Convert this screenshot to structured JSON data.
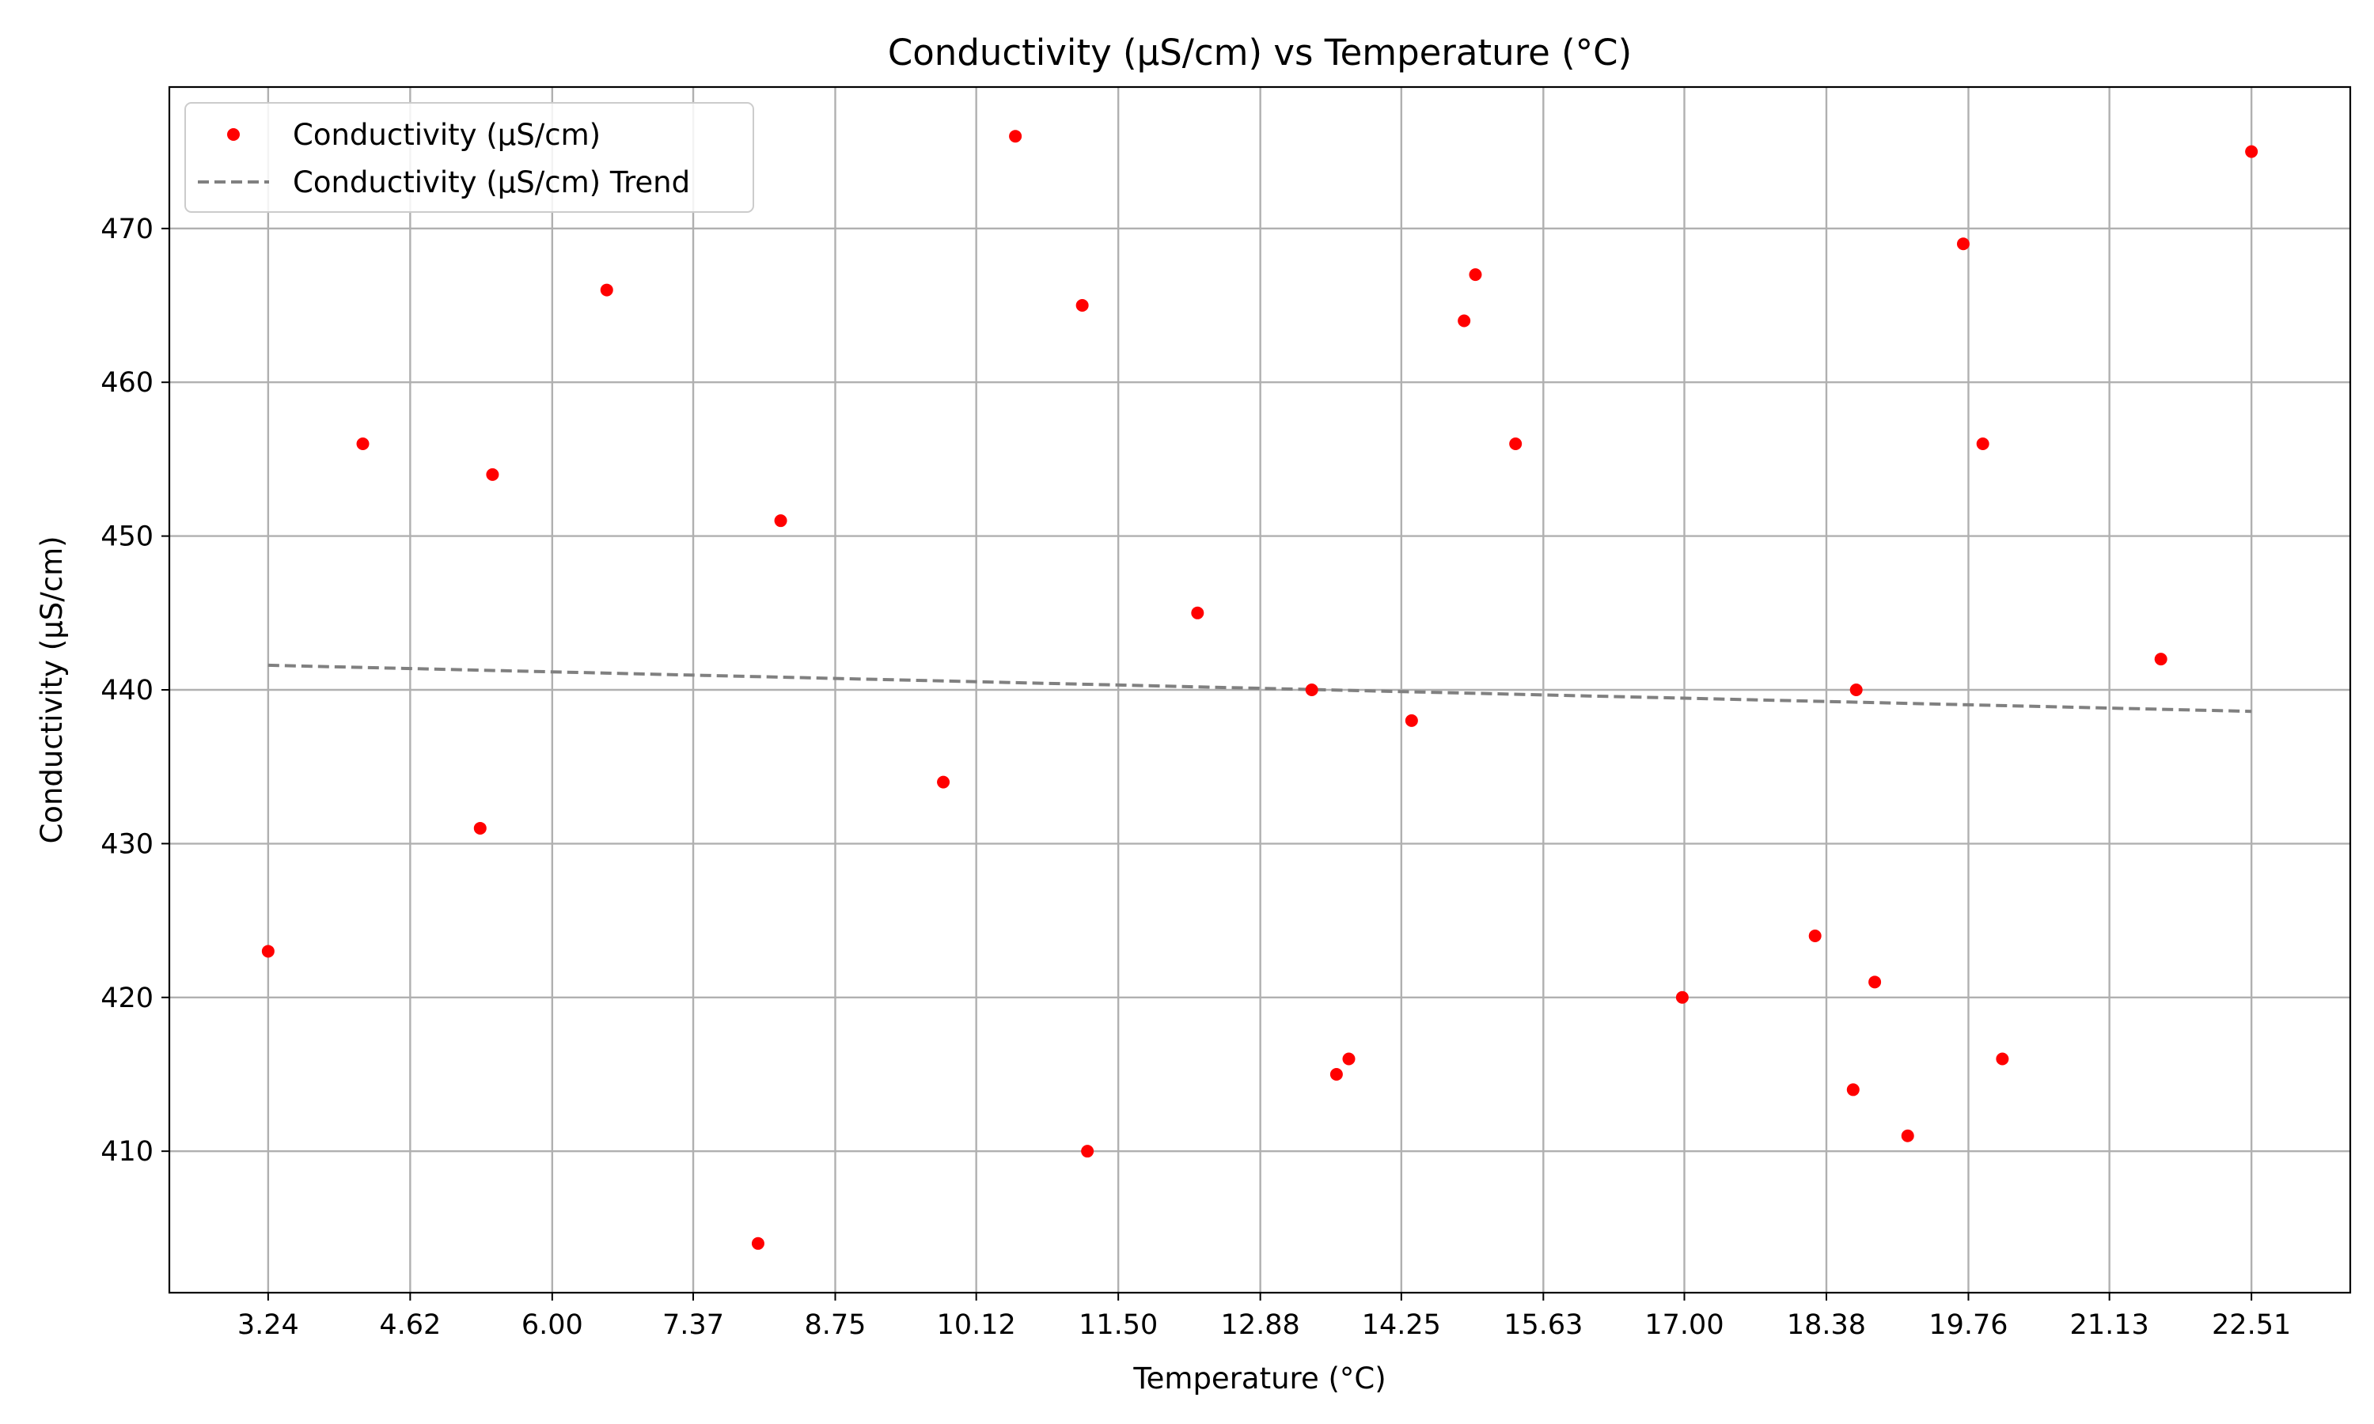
{
  "chart_data": {
    "type": "scatter",
    "title": "Conductivity (µS/cm) vs Temperature (°C)",
    "xlabel": "Temperature (°C)",
    "ylabel": "Conductivity (µS/cm)",
    "xlim": [
      2.28,
      23.47
    ],
    "ylim": [
      400.8,
      479.2
    ],
    "x_ticks": [
      "3.24",
      "4.62",
      "6.00",
      "7.37",
      "8.75",
      "10.12",
      "11.50",
      "12.88",
      "14.25",
      "15.63",
      "17.00",
      "18.38",
      "19.76",
      "21.13",
      "22.51"
    ],
    "y_ticks": [
      "410",
      "420",
      "430",
      "440",
      "450",
      "460",
      "470"
    ],
    "grid": true,
    "legend_position": "top-left",
    "series": [
      {
        "name": "Conductivity (µS/cm)",
        "kind": "scatter",
        "color": "#ff0000",
        "points": [
          {
            "x": 3.24,
            "y": 423
          },
          {
            "x": 4.16,
            "y": 456
          },
          {
            "x": 5.3,
            "y": 431
          },
          {
            "x": 5.42,
            "y": 454
          },
          {
            "x": 6.53,
            "y": 466
          },
          {
            "x": 8.0,
            "y": 404
          },
          {
            "x": 8.22,
            "y": 451
          },
          {
            "x": 9.8,
            "y": 434
          },
          {
            "x": 10.5,
            "y": 476
          },
          {
            "x": 11.15,
            "y": 465
          },
          {
            "x": 11.2,
            "y": 410
          },
          {
            "x": 12.27,
            "y": 445
          },
          {
            "x": 13.38,
            "y": 440
          },
          {
            "x": 13.62,
            "y": 415
          },
          {
            "x": 13.74,
            "y": 416
          },
          {
            "x": 14.35,
            "y": 438
          },
          {
            "x": 14.86,
            "y": 464
          },
          {
            "x": 14.97,
            "y": 467
          },
          {
            "x": 15.36,
            "y": 456
          },
          {
            "x": 16.98,
            "y": 420
          },
          {
            "x": 18.27,
            "y": 424
          },
          {
            "x": 18.64,
            "y": 414
          },
          {
            "x": 18.67,
            "y": 440
          },
          {
            "x": 18.85,
            "y": 421
          },
          {
            "x": 19.17,
            "y": 411
          },
          {
            "x": 19.71,
            "y": 469
          },
          {
            "x": 19.9,
            "y": 456
          },
          {
            "x": 20.09,
            "y": 416
          },
          {
            "x": 21.63,
            "y": 442
          },
          {
            "x": 22.51,
            "y": 475
          }
        ]
      },
      {
        "name": "Conductivity (µS/cm) Trend",
        "kind": "line",
        "color": "#808080",
        "dash": "dashed",
        "points": [
          {
            "x": 3.24,
            "y": 441.6
          },
          {
            "x": 22.51,
            "y": 438.6
          }
        ]
      }
    ]
  }
}
